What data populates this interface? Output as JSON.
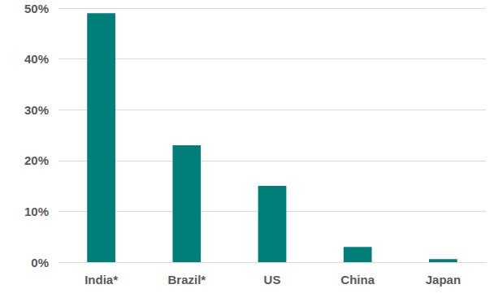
{
  "chart_data": {
    "type": "bar",
    "categories": [
      "India*",
      "Brazil*",
      "US",
      "China",
      "Japan"
    ],
    "values": [
      49,
      23,
      15,
      3,
      0.6
    ],
    "color": "#007f7a",
    "ylim": [
      0,
      50
    ],
    "yticks": [
      {
        "value": 0,
        "label": "0%"
      },
      {
        "value": 10,
        "label": "10%"
      },
      {
        "value": 20,
        "label": "20%"
      },
      {
        "value": 30,
        "label": "30%"
      },
      {
        "value": 40,
        "label": "40%"
      },
      {
        "value": 50,
        "label": "50%"
      }
    ],
    "grid": true
  }
}
